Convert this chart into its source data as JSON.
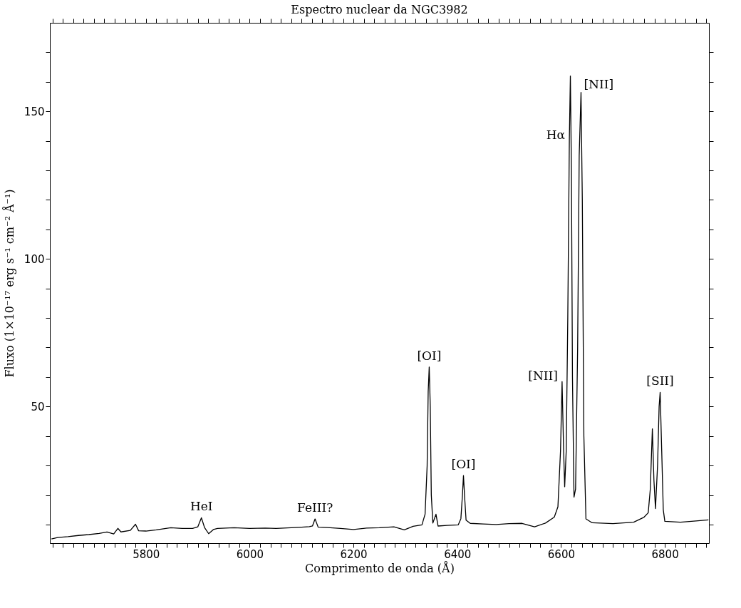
{
  "chart_data": {
    "type": "line",
    "title": "Espectro nuclear da NGC3982",
    "xlabel": "Comprimento de onda (Å)",
    "ylabel": "Fluxo (1×10⁻¹⁷ erg s⁻¹ cm⁻² Å⁻¹)",
    "x": [
      5618,
      5630,
      5650,
      5670,
      5690,
      5710,
      5725,
      5738,
      5746,
      5752,
      5770,
      5780,
      5786,
      5800,
      5820,
      5848,
      5870,
      5890,
      5900,
      5907,
      5913,
      5921,
      5930,
      5938,
      5970,
      6000,
      6030,
      6051,
      6080,
      6100,
      6115,
      6121,
      6126,
      6132,
      6150,
      6175,
      6200,
      6225,
      6250,
      6278,
      6298,
      6315,
      6332,
      6338,
      6342,
      6344,
      6346,
      6348,
      6350,
      6353,
      6359,
      6363,
      6380,
      6402,
      6407,
      6410,
      6412,
      6414,
      6417,
      6425,
      6450,
      6475,
      6500,
      6525,
      6549,
      6570,
      6587,
      6594,
      6599,
      6602,
      6605,
      6607,
      6610,
      6613,
      6616,
      6618,
      6620,
      6622,
      6625,
      6628,
      6632,
      6635,
      6638.5,
      6641,
      6644,
      6648,
      6660,
      6700,
      6740,
      6760,
      6768,
      6772,
      6776,
      6779,
      6782,
      6786,
      6789,
      6791,
      6794,
      6797,
      6800,
      6830,
      6860,
      6884
    ],
    "series": [
      {
        "color": "#000000",
        "values": [
          5.1,
          5.6,
          5.9,
          6.3,
          6.6,
          7.0,
          7.5,
          6.8,
          8.7,
          7.5,
          8.0,
          10.1,
          7.9,
          7.8,
          8.2,
          8.9,
          8.7,
          8.7,
          9.2,
          12.3,
          9.0,
          6.9,
          8.3,
          8.7,
          8.9,
          8.7,
          8.8,
          8.7,
          8.9,
          9.1,
          9.3,
          9.5,
          11.9,
          9.1,
          9.0,
          8.7,
          8.3,
          8.8,
          8.9,
          9.2,
          8.2,
          9.4,
          9.9,
          13.5,
          30,
          55,
          63.4,
          50,
          20,
          10.5,
          13.5,
          9.5,
          9.7,
          9.9,
          12,
          20,
          26.6,
          20,
          11.5,
          10.4,
          10.2,
          10.0,
          10.3,
          10.4,
          9.2,
          10.5,
          12.5,
          16,
          35,
          58.4,
          35,
          22.8,
          35,
          80,
          140,
          162,
          130,
          60,
          19.3,
          22,
          70,
          135,
          156.4,
          120,
          40,
          11.9,
          10.6,
          10.3,
          10.8,
          12.5,
          14,
          22,
          42.4,
          25,
          15.4,
          30,
          50,
          54.8,
          35,
          15,
          11.1,
          10.8,
          11.2,
          11.6
        ]
      }
    ],
    "xlim": [
      5615,
      6885
    ],
    "ylim": [
      3.7,
      180
    ],
    "xticks": [
      {
        "value": 5620,
        "label": null
      },
      {
        "value": 5640,
        "label": null
      },
      {
        "value": 5660,
        "label": null
      },
      {
        "value": 5680,
        "label": null
      },
      {
        "value": 5700,
        "label": null
      },
      {
        "value": 5720,
        "label": null
      },
      {
        "value": 5740,
        "label": null
      },
      {
        "value": 5760,
        "label": null
      },
      {
        "value": 5780,
        "label": null
      },
      5800,
      {
        "value": 5820,
        "label": null
      },
      {
        "value": 5840,
        "label": null
      },
      {
        "value": 5860,
        "label": null
      },
      {
        "value": 5880,
        "label": null
      },
      {
        "value": 5900,
        "label": null
      },
      {
        "value": 5920,
        "label": null
      },
      {
        "value": 5940,
        "label": null
      },
      {
        "value": 5960,
        "label": null
      },
      {
        "value": 5980,
        "label": null
      },
      6000,
      {
        "value": 6020,
        "label": null
      },
      {
        "value": 6040,
        "label": null
      },
      {
        "value": 6060,
        "label": null
      },
      {
        "value": 6080,
        "label": null
      },
      {
        "value": 6100,
        "label": null
      },
      {
        "value": 6120,
        "label": null
      },
      {
        "value": 6140,
        "label": null
      },
      {
        "value": 6160,
        "label": null
      },
      {
        "value": 6180,
        "label": null
      },
      6200,
      {
        "value": 6220,
        "label": null
      },
      {
        "value": 6240,
        "label": null
      },
      {
        "value": 6260,
        "label": null
      },
      {
        "value": 6280,
        "label": null
      },
      {
        "value": 6300,
        "label": null
      },
      {
        "value": 6320,
        "label": null
      },
      {
        "value": 6340,
        "label": null
      },
      {
        "value": 6360,
        "label": null
      },
      {
        "value": 6380,
        "label": null
      },
      6400,
      {
        "value": 6420,
        "label": null
      },
      {
        "value": 6440,
        "label": null
      },
      {
        "value": 6460,
        "label": null
      },
      {
        "value": 6480,
        "label": null
      },
      {
        "value": 6500,
        "label": null
      },
      {
        "value": 6520,
        "label": null
      },
      {
        "value": 6540,
        "label": null
      },
      {
        "value": 6560,
        "label": null
      },
      {
        "value": 6580,
        "label": null
      },
      6600,
      {
        "value": 6620,
        "label": null
      },
      {
        "value": 6640,
        "label": null
      },
      {
        "value": 6660,
        "label": null
      },
      {
        "value": 6680,
        "label": null
      },
      {
        "value": 6700,
        "label": null
      },
      {
        "value": 6720,
        "label": null
      },
      {
        "value": 6740,
        "label": null
      },
      {
        "value": 6760,
        "label": null
      },
      {
        "value": 6780,
        "label": null
      },
      6800,
      {
        "value": 6820,
        "label": null
      },
      {
        "value": 6840,
        "label": null
      },
      {
        "value": 6860,
        "label": null
      },
      {
        "value": 6880,
        "label": null
      }
    ],
    "yticks": [
      {
        "value": 10,
        "label": null
      },
      {
        "value": 20,
        "label": null
      },
      {
        "value": 30,
        "label": null
      },
      {
        "value": 40,
        "label": null
      },
      50,
      {
        "value": 60,
        "label": null
      },
      {
        "value": 70,
        "label": null
      },
      {
        "value": 80,
        "label": null
      },
      {
        "value": 90,
        "label": null
      },
      100,
      {
        "value": 110,
        "label": null
      },
      {
        "value": 120,
        "label": null
      },
      {
        "value": 130,
        "label": null
      },
      {
        "value": 140,
        "label": null
      },
      150,
      {
        "value": 160,
        "label": null
      },
      {
        "value": 170,
        "label": null
      }
    ],
    "grid": false,
    "marker": "none",
    "line_style": "solid",
    "annotations": [
      {
        "text": "HeI",
        "x": 5907,
        "y": 12.3
      },
      {
        "text": "FeIII?",
        "x": 6126,
        "y": 11.9
      },
      {
        "text": "[OI]",
        "x": 6346,
        "y": 63.4
      },
      {
        "text": "[OI]",
        "x": 6412,
        "y": 26.6
      },
      {
        "text": "[NII]",
        "x": 6602,
        "y": 58.4
      },
      {
        "text": "Hα",
        "x": 6616,
        "y": 140
      },
      {
        "text": "[NII]",
        "x": 6638.5,
        "y": 156.4
      },
      {
        "text": "[SII]",
        "x": 6791,
        "y": 54.8
      }
    ]
  }
}
